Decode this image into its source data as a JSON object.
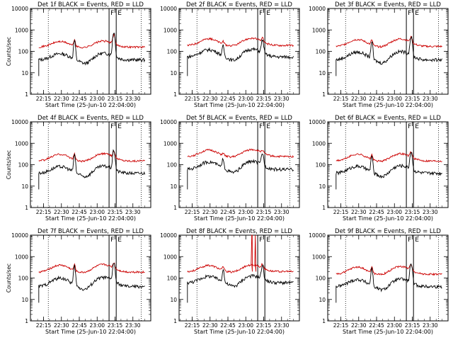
{
  "chart_data": [
    {
      "type": "line",
      "title": "Det 1f BLACK = Events, RED = LLD",
      "xlabel": "",
      "ylabel": "Counts/sec",
      "xticks": [
        "22:15",
        "22:30",
        "22:45",
        "23:00",
        "23:15",
        "23:30"
      ],
      "yticks": [
        "1",
        "10",
        "100",
        "1000",
        "10000"
      ],
      "ylim": [
        1,
        10000
      ],
      "yscale": "log",
      "grid": false,
      "marker_labels": [
        "F",
        "E"
      ],
      "events_base": 40,
      "lld_base": 160,
      "lld_bump": 330,
      "events_bump": 90,
      "spike1": 280,
      "spike2": 750,
      "events_start": "22:11",
      "series": [
        {
          "color": "#000000"
        },
        {
          "color": "#cc0000"
        }
      ]
    },
    {
      "type": "line",
      "title": "Det 2f BLACK = Events, RED = LLD",
      "xlabel": "",
      "ylabel": "",
      "xticks": [
        "22:15",
        "22:30",
        "22:45",
        "23:00",
        "23:15",
        "23:30"
      ],
      "yticks": [
        "1",
        "10",
        "100",
        "1000",
        "10000"
      ],
      "ylim": [
        1,
        10000
      ],
      "yscale": "log",
      "grid": false,
      "marker_labels": [
        "F",
        "E"
      ],
      "events_base": 55,
      "lld_base": 190,
      "lld_bump": 450,
      "events_bump": 140,
      "spike1": 120,
      "spike2": 260,
      "events_start": "22:11",
      "series": [
        {
          "color": "#000000"
        },
        {
          "color": "#cc0000"
        }
      ]
    },
    {
      "type": "line",
      "title": "Det 3f BLACK = Events, RED = LLD",
      "xlabel": "",
      "ylabel": "",
      "xticks": [
        "22:15",
        "22:30",
        "22:45",
        "23:00",
        "23:15",
        "23:30"
      ],
      "yticks": [
        "1",
        "10",
        "100",
        "1000",
        "10000"
      ],
      "ylim": [
        1,
        10000
      ],
      "yscale": "log",
      "grid": false,
      "marker_labels": [
        "F",
        "E"
      ],
      "events_base": 40,
      "lld_base": 170,
      "lld_bump": 420,
      "events_bump": 110,
      "spike1": 250,
      "spike2": 420,
      "events_start": "22:11",
      "series": [
        {
          "color": "#000000"
        },
        {
          "color": "#cc0000"
        }
      ]
    },
    {
      "type": "line",
      "title": "Det 4f BLACK = Events, RED = LLD",
      "xlabel": "",
      "ylabel": "Counts/sec",
      "xticks": [
        "22:15",
        "22:30",
        "22:45",
        "23:00",
        "23:15",
        "23:30"
      ],
      "yticks": [
        "1",
        "10",
        "100",
        "1000",
        "10000"
      ],
      "ylim": [
        1,
        10000
      ],
      "yscale": "log",
      "grid": false,
      "marker_labels": [
        "F",
        "E"
      ],
      "events_base": 40,
      "lld_base": 150,
      "lld_bump": 360,
      "events_bump": 95,
      "spike1": 250,
      "spike2": 430,
      "events_start": "22:11",
      "series": [
        {
          "color": "#000000"
        },
        {
          "color": "#cc0000"
        }
      ]
    },
    {
      "type": "line",
      "title": "Det 5f BLACK = Events, RED = LLD",
      "xlabel": "",
      "ylabel": "",
      "xticks": [
        "22:15",
        "22:30",
        "22:45",
        "23:00",
        "23:15",
        "23:30"
      ],
      "yticks": [
        "1",
        "10",
        "100",
        "1000",
        "10000"
      ],
      "ylim": [
        1,
        10000
      ],
      "yscale": "log",
      "grid": false,
      "marker_labels": [
        "F",
        "E"
      ],
      "events_base": 60,
      "lld_base": 240,
      "lld_bump": 560,
      "events_bump": 160,
      "spike1": 130,
      "spike2": 250,
      "events_start": "22:11",
      "series": [
        {
          "color": "#000000"
        },
        {
          "color": "#cc0000"
        }
      ]
    },
    {
      "type": "line",
      "title": "Det 6f BLACK = Events, RED = LLD",
      "xlabel": "",
      "ylabel": "",
      "xticks": [
        "22:15",
        "22:30",
        "22:45",
        "23:00",
        "23:15",
        "23:30"
      ],
      "yticks": [
        "1",
        "10",
        "100",
        "1000",
        "10000"
      ],
      "ylim": [
        1,
        10000
      ],
      "yscale": "log",
      "grid": false,
      "marker_labels": [
        "F",
        "E"
      ],
      "events_base": 40,
      "lld_base": 150,
      "lld_bump": 360,
      "events_bump": 100,
      "spike1": 220,
      "spike2": 350,
      "events_start": "22:11",
      "series": [
        {
          "color": "#000000"
        },
        {
          "color": "#cc0000"
        }
      ]
    },
    {
      "type": "line",
      "title": "Det 7f BLACK = Events, RED = LLD",
      "xlabel": "",
      "ylabel": "Counts/sec",
      "xticks": [
        "22:15",
        "22:30",
        "22:45",
        "23:00",
        "23:15",
        "23:30"
      ],
      "yticks": [
        "1",
        "10",
        "100",
        "1000",
        "10000"
      ],
      "ylim": [
        1,
        10000
      ],
      "yscale": "log",
      "grid": false,
      "marker_labels": [
        "F",
        "E"
      ],
      "events_base": 40,
      "lld_base": 190,
      "lld_bump": 470,
      "events_bump": 120,
      "spike1": 320,
      "spike2": 450,
      "events_start": "22:11",
      "series": [
        {
          "color": "#000000"
        },
        {
          "color": "#cc0000"
        }
      ]
    },
    {
      "type": "line",
      "title": "Det 8f BLACK = Events, RED = LLD",
      "xlabel": "",
      "ylabel": "",
      "xticks": [
        "22:15",
        "22:30",
        "22:45",
        "23:00",
        "23:15",
        "23:30"
      ],
      "yticks": [
        "1",
        "10",
        "100",
        "1000",
        "10000"
      ],
      "ylim": [
        1,
        10000
      ],
      "yscale": "log",
      "grid": false,
      "marker_labels": [
        "F",
        "E"
      ],
      "events_base": 60,
      "lld_base": 200,
      "lld_bump": 450,
      "events_bump": 140,
      "spike1": 200,
      "spike2": 320,
      "events_start": "22:11",
      "lld_jump_value": 10000,
      "series": [
        {
          "color": "#000000"
        },
        {
          "color": "#cc0000"
        }
      ]
    },
    {
      "type": "line",
      "title": "Det 9f BLACK = Events, RED = LLD",
      "xlabel": "",
      "ylabel": "",
      "xticks": [
        "22:15",
        "22:30",
        "22:45",
        "23:00",
        "23:15",
        "23:30"
      ],
      "yticks": [
        "1",
        "10",
        "100",
        "1000",
        "10000"
      ],
      "ylim": [
        1,
        10000
      ],
      "yscale": "log",
      "grid": false,
      "marker_labels": [
        "F",
        "E"
      ],
      "events_base": 40,
      "lld_base": 150,
      "lld_bump": 380,
      "events_bump": 100,
      "spike1": 250,
      "spike2": 420,
      "events_start": "22:11",
      "series": [
        {
          "color": "#000000"
        },
        {
          "color": "#cc0000"
        }
      ]
    }
  ],
  "xaxis_caption": "Start Time (25-Jun-10 22:04:00)"
}
